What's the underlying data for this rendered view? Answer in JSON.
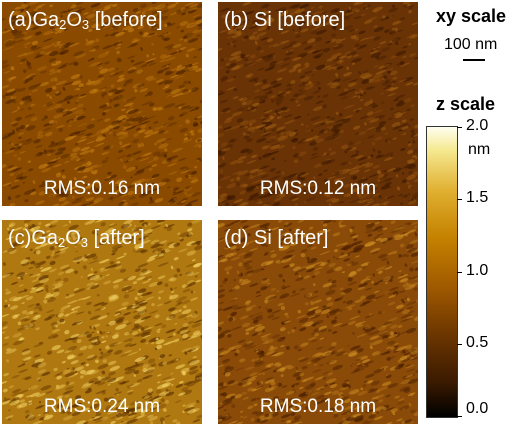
{
  "panels": [
    {
      "id": "a",
      "prefix": "(a)Ga",
      "sub": "2",
      "mid": "O",
      "sub2": "3",
      "suffix": " [before]",
      "rms": "RMS:0.16 nm",
      "base": "#8a4a00",
      "hi": "#c07a10",
      "lo": "#4a2200"
    },
    {
      "id": "b",
      "prefix": "(b) Si [before]",
      "sub": "",
      "mid": "",
      "sub2": "",
      "suffix": "",
      "rms": "RMS:0.12 nm",
      "base": "#6a3306",
      "hi": "#9a5a10",
      "lo": "#3a1800"
    },
    {
      "id": "c",
      "prefix": "(c)Ga",
      "sub": "2",
      "mid": "O",
      "sub2": "3",
      "suffix": " [after]",
      "rms": "RMS:0.24 nm",
      "base": "#b07810",
      "hi": "#f0d060",
      "lo": "#5a3000"
    },
    {
      "id": "d",
      "prefix": "(d) Si [after]",
      "sub": "",
      "mid": "",
      "sub2": "",
      "suffix": "",
      "rms": "RMS:0.18 nm",
      "base": "#8a4a08",
      "hi": "#c88a20",
      "lo": "#4a2000"
    }
  ],
  "xy_scale": {
    "title": "xy scale",
    "bar_label": "100 nm"
  },
  "z_scale": {
    "title": "z scale",
    "unit": "nm",
    "ticks": [
      "2.0",
      "1.5",
      "1.0",
      "0.5",
      "0.0"
    ]
  }
}
